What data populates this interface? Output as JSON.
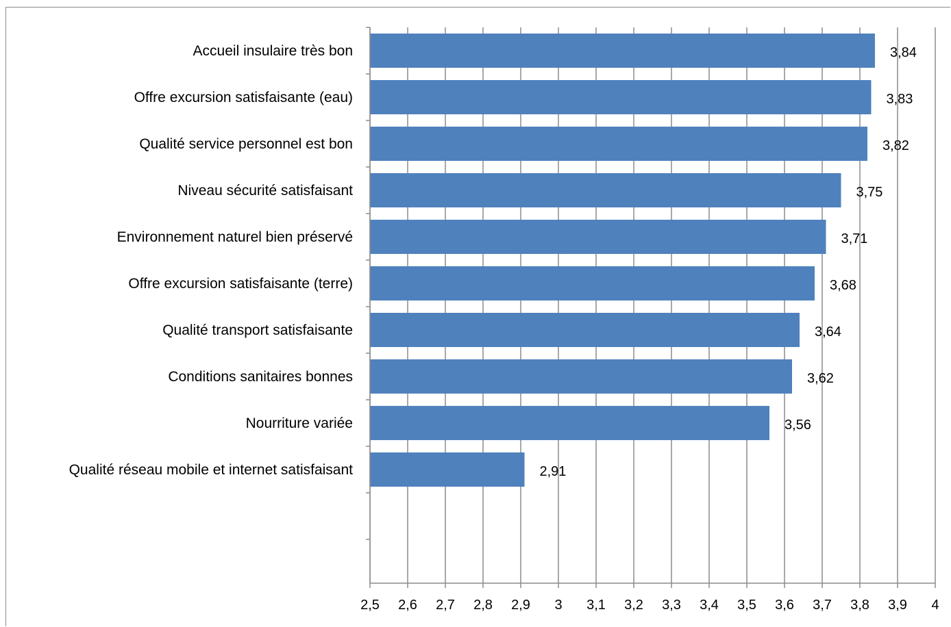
{
  "chart_data": {
    "type": "bar",
    "orientation": "horizontal",
    "categories": [
      "Accueil insulaire très bon",
      "Offre excursion satisfaisante (eau)",
      "Qualité service personnel est bon",
      "Niveau sécurité satisfaisant",
      "Environnement naturel bien préservé",
      "Offre excursion satisfaisante (terre)",
      "Qualité transport satisfaisante",
      "Conditions sanitaires bonnes",
      "Nourriture variée",
      "Qualité réseau mobile et internet satisfaisant"
    ],
    "values": [
      3.84,
      3.83,
      3.82,
      3.75,
      3.71,
      3.68,
      3.64,
      3.62,
      3.56,
      2.91
    ],
    "data_labels": [
      "3,84",
      "3,83",
      "3,82",
      "3,75",
      "3,71",
      "3,68",
      "3,64",
      "3,62",
      "3,56",
      "2,91"
    ],
    "xlim": [
      2.5,
      4
    ],
    "x_ticks": [
      2.5,
      2.6,
      2.7,
      2.8,
      2.9,
      3,
      3.1,
      3.2,
      3.3,
      3.4,
      3.5,
      3.6,
      3.7,
      3.8,
      3.9,
      4
    ],
    "x_tick_labels": [
      "2,5",
      "2,6",
      "2,7",
      "2,8",
      "2,9",
      "3",
      "3,1",
      "3,2",
      "3,3",
      "3,4",
      "3,5",
      "3,6",
      "3,7",
      "3,8",
      "3,9",
      "4"
    ],
    "title": "",
    "xlabel": "",
    "ylabel": "",
    "grid": "vertical",
    "legend": "none",
    "bar_color": "#4f81bd",
    "grid_color": "#8c8c8c"
  }
}
